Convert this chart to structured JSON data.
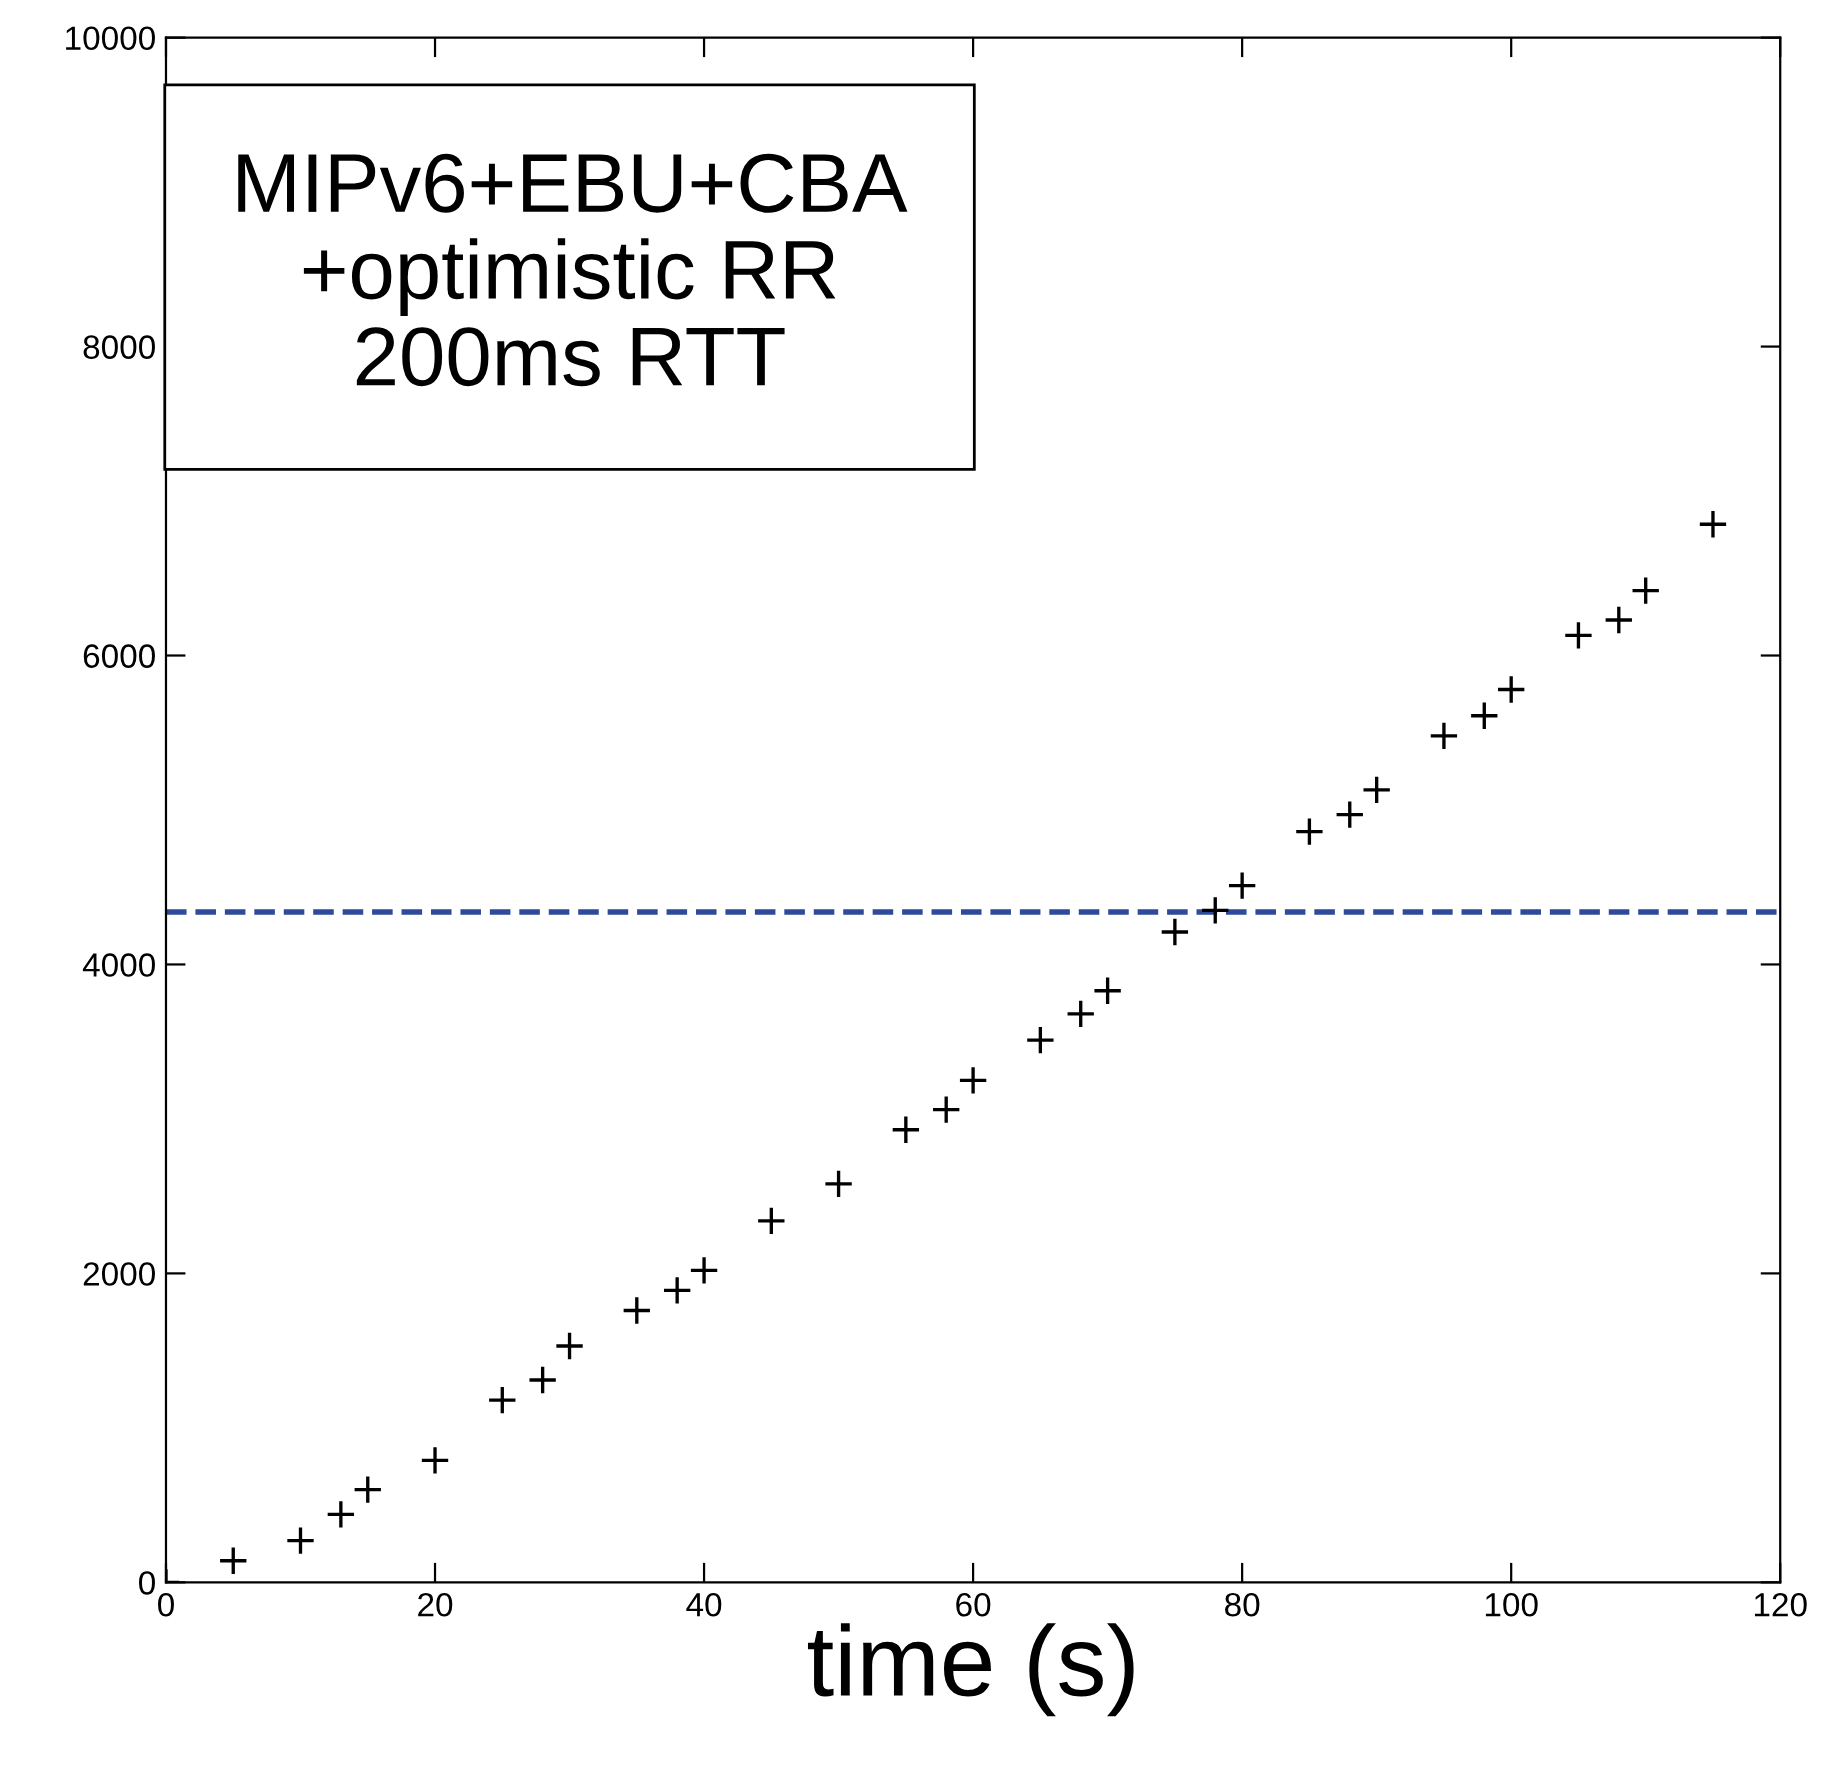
{
  "chart_data": {
    "type": "scatter",
    "xlabel": "time (s)",
    "annotations": [
      "MIPv6+EBU+CBA\n+optimistic RR\n200ms RTT"
    ],
    "x": [
      0,
      5,
      10,
      13,
      15,
      20,
      25,
      28,
      30,
      35,
      38,
      40,
      45,
      50,
      55,
      58,
      60,
      65,
      68,
      70,
      75,
      78,
      80,
      85,
      88,
      90,
      95,
      98,
      100,
      105,
      108,
      110,
      115
    ],
    "series": [
      {
        "color": "#000000",
        "values": [
          0,
          140,
          270,
          440,
          600,
          790,
          1180,
          1310,
          1530,
          1760,
          1890,
          2020,
          2340,
          2580,
          2930,
          3060,
          3250,
          3510,
          3680,
          3830,
          4210,
          4350,
          4510,
          4860,
          4970,
          5130,
          5480,
          5610,
          5780,
          6130,
          6230,
          6420,
          6850
        ]
      }
    ],
    "marker": "cross",
    "xlim": [
      0,
      120
    ],
    "ylim": [
      0,
      10000
    ],
    "xticks": [
      0,
      20,
      40,
      60,
      80,
      100,
      120
    ],
    "yticks": [
      0,
      2000,
      4000,
      6000,
      8000,
      10000
    ],
    "grid": false,
    "ref_lines": [
      {
        "axis": "y",
        "value": 4340,
        "color": "#2e4a9a",
        "line_style": "dashed"
      }
    ]
  }
}
